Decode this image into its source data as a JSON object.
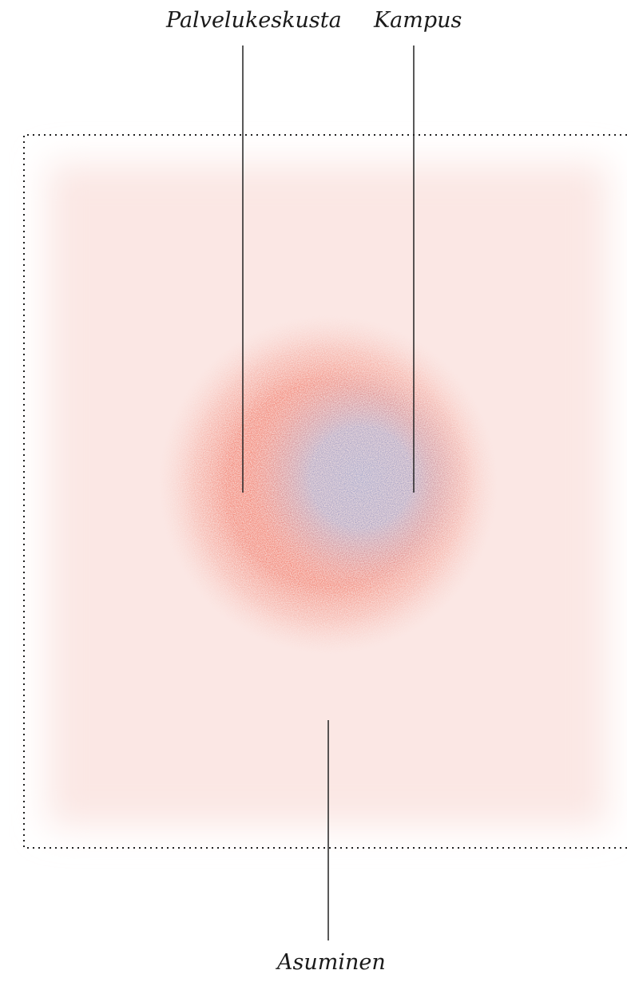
{
  "labels": {
    "palvelukeskusta": "Palvelukeskusta",
    "kampus": "Kampus",
    "asuminen": "Asuminen"
  },
  "colors": {
    "zone_fill": "#fbe7e4",
    "core_red": "#ee5a45",
    "core_blue": "#8b94c4",
    "border": "#222222",
    "leader_line": "#222222"
  }
}
